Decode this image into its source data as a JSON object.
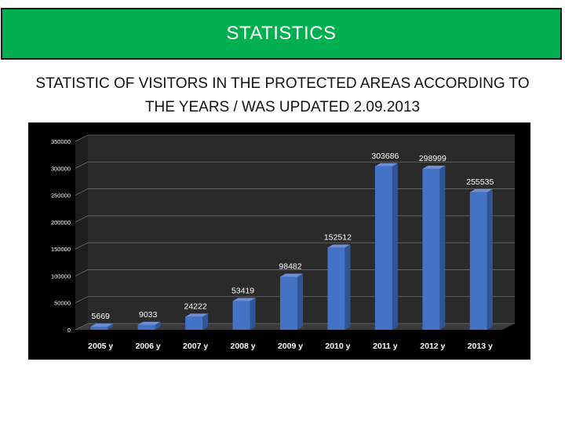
{
  "header": {
    "title": "STATISTICS"
  },
  "subtitle": {
    "line1": "STATISTIC OF VISITORS IN THE PROTECTED AREAS ACCORDING TO",
    "line2": "THE YEARS / WAS UPDATED 2.09.2013"
  },
  "colors": {
    "banner": "#00b050",
    "bar": "#4472c4",
    "chart_bg": "#000000",
    "plot_wall": "#2a2a2a"
  },
  "chart_data": {
    "type": "bar",
    "categories": [
      "2005 y",
      "2006 y",
      "2007 y",
      "2008 y",
      "2009 y",
      "2010 y",
      "2011 y",
      "2012 y",
      "2013 y"
    ],
    "values": [
      5669,
      9033,
      24222,
      53419,
      98482,
      152512,
      303686,
      298999,
      255535
    ],
    "data_labels": [
      "5669",
      "9033",
      "24222",
      "53419",
      "98482",
      "152512",
      "303686",
      "298999",
      "255535"
    ],
    "yticks": [
      "0",
      "50000",
      "100000",
      "150000",
      "200000",
      "250000",
      "300000",
      "350000"
    ],
    "ylim": [
      0,
      350000
    ],
    "grid": true,
    "legend": "none"
  }
}
